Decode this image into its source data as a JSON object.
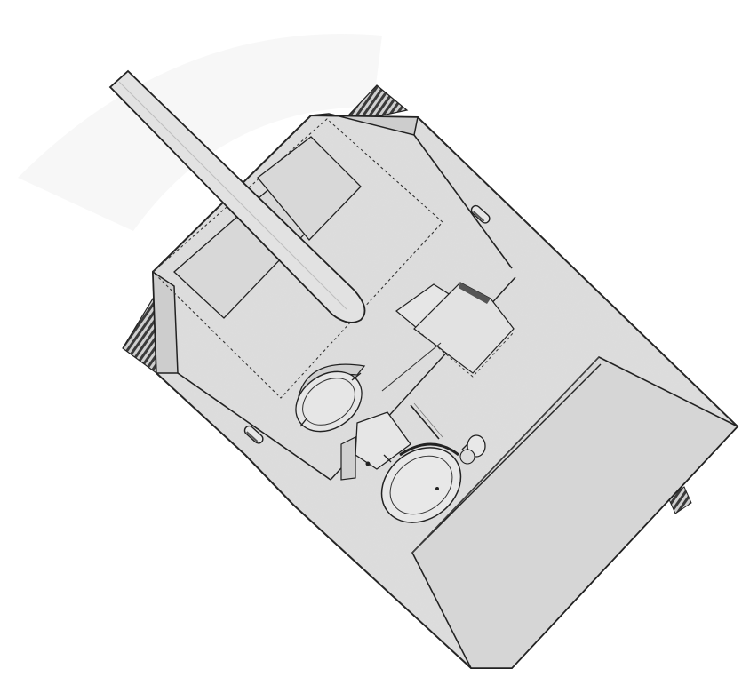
{
  "drawing": {
    "subject": "tank-destroyer-top-view",
    "colors": {
      "background": "#ffffff",
      "hull_fill": "#dedede",
      "deck_fill": "#d6d6d6",
      "line": "#222222",
      "shadow": "#555555",
      "track": "#333333"
    }
  }
}
